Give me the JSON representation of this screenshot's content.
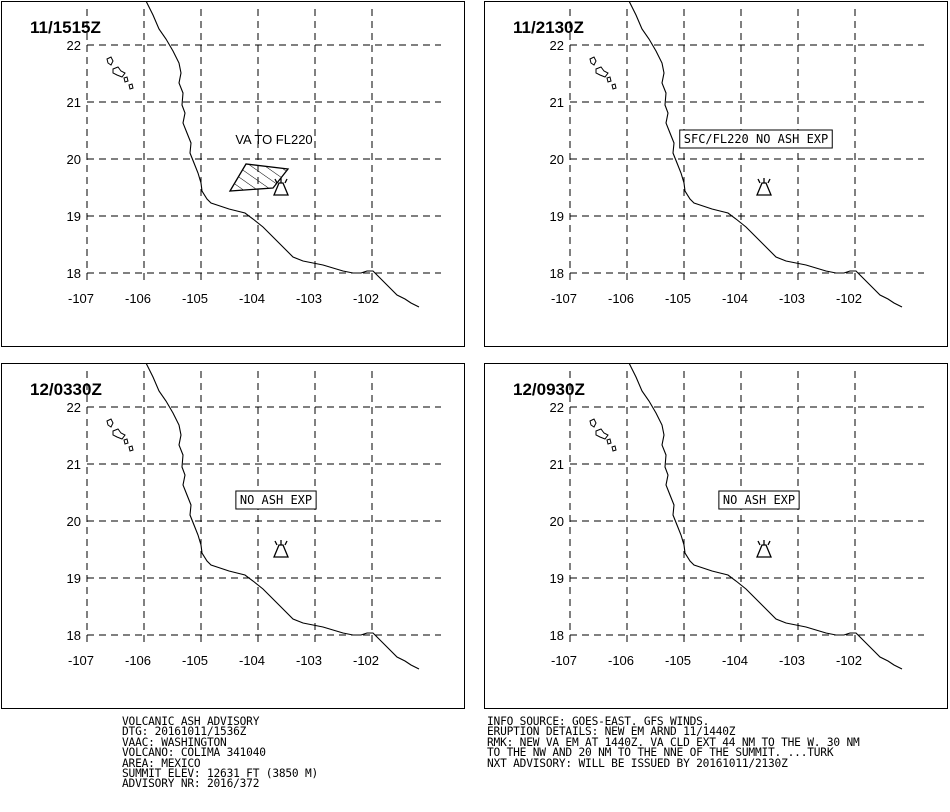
{
  "panels": [
    {
      "time": "11/1515Z",
      "label": "VA TO FL220",
      "label_boxed": false,
      "has_ash_polygon": true
    },
    {
      "time": "11/2130Z",
      "label": "SFC/FL220 NO ASH EXP",
      "label_boxed": true,
      "has_ash_polygon": false
    },
    {
      "time": "12/0330Z",
      "label": "NO ASH EXP",
      "label_boxed": true,
      "has_ash_polygon": false
    },
    {
      "time": "12/0930Z",
      "label": "NO ASH EXP",
      "label_boxed": true,
      "has_ash_polygon": false
    }
  ],
  "map": {
    "lat_labels": [
      "22",
      "21",
      "20",
      "19",
      "18"
    ],
    "lon_labels": [
      "-107",
      "-106",
      "-105",
      "-104",
      "-103",
      "-102"
    ],
    "volcano_symbol": "volcano-icon",
    "line_color": "#000000",
    "background": "#ffffff"
  },
  "advisory": {
    "left_lines": [
      "VOLCANIC ASH ADVISORY",
      "DTG: 20161011/1536Z",
      "VAAC: WASHINGTON",
      "VOLCANO: COLIMA 341040",
      "AREA: MEXICO",
      "SUMMIT ELEV: 12631 FT (3850 M)",
      "ADVISORY NR: 2016/372"
    ],
    "right_lines": [
      "INFO SOURCE: GOES-EAST. GFS WINDS.",
      "ERUPTION DETAILS: NEW EM ARND 11/1440Z",
      "RMK: NEW VA EM AT 1440Z. VA CLD EXT 44 NM TO THE W. 30 NM",
      "TO THE NW AND 20 NM TO THE NNE OF THE SUMMIT. ...TURK",
      "NXT ADVISORY: WILL BE ISSUED BY 20161011/2130Z"
    ]
  }
}
